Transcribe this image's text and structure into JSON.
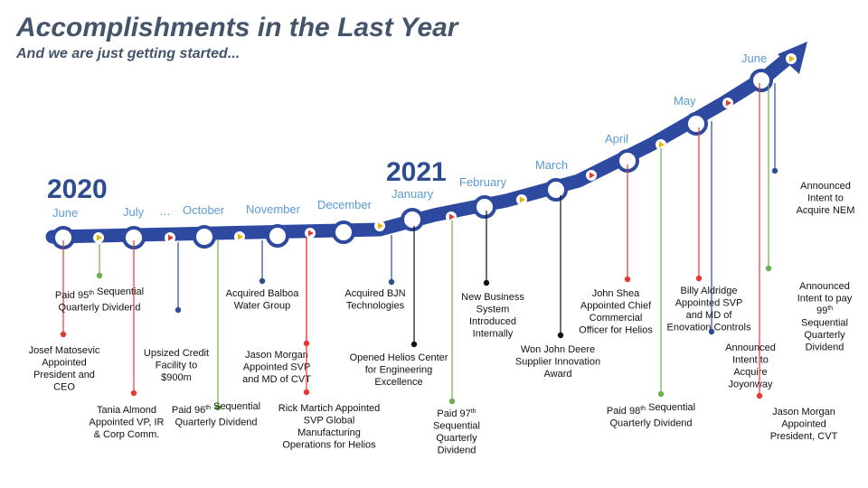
{
  "title": "Accomplishments in the Last Year",
  "subtitle": "And we are just getting started...",
  "colors": {
    "band": "#2e4aa0",
    "red": "#e53935",
    "green": "#6ab04c",
    "navy": "#2e4d8f",
    "black": "#111111",
    "month": "#5b9bd5",
    "title": "#44546a"
  },
  "years": [
    "2020",
    "2021"
  ],
  "months": [
    "June",
    "July",
    "…",
    "October",
    "November",
    "December",
    "January",
    "February",
    "March",
    "April",
    "May",
    "June"
  ],
  "annotations": [
    {
      "id": "josef",
      "lines": [
        "Josef Matosevic",
        "Appointed",
        "President and",
        "CEO"
      ],
      "color": "red"
    },
    {
      "id": "paid95",
      "lines": [
        "Paid 95|th| Sequential",
        "Quarterly Dividend"
      ],
      "color": "green"
    },
    {
      "id": "tania",
      "lines": [
        "Tania Almond",
        "Appointed VP, IR",
        "& Corp Comm."
      ],
      "color": "red"
    },
    {
      "id": "upsized",
      "lines": [
        "Upsized Credit",
        "Facility to",
        "$900m"
      ],
      "color": "navy"
    },
    {
      "id": "paid96",
      "lines": [
        "Paid 96|th| Sequential",
        "Quarterly Dividend"
      ],
      "color": "green"
    },
    {
      "id": "balboa",
      "lines": [
        "Acquired Balboa",
        "Water Group"
      ],
      "color": "navy"
    },
    {
      "id": "jason1",
      "lines": [
        "Jason Morgan",
        "Appointed SVP",
        "and MD of CVT"
      ],
      "color": "red"
    },
    {
      "id": "rick",
      "lines": [
        "Rick Martich Appointed",
        "SVP Global",
        "Manufacturing",
        "Operations for Helios"
      ],
      "color": "red"
    },
    {
      "id": "bjn",
      "lines": [
        "Acquired BJN",
        "Technologies"
      ],
      "color": "navy"
    },
    {
      "id": "helios",
      "lines": [
        "Opened Helios Center",
        "for Engineering",
        "Excellence"
      ],
      "color": "black"
    },
    {
      "id": "paid97",
      "lines": [
        "Paid 97|th|",
        "Sequential",
        "Quarterly",
        "Dividend"
      ],
      "color": "green"
    },
    {
      "id": "newbiz",
      "lines": [
        "New Business",
        "System",
        "Introduced",
        "Internally"
      ],
      "color": "black"
    },
    {
      "id": "deere",
      "lines": [
        "Won John Deere",
        "Supplier Innovation",
        "Award"
      ],
      "color": "black"
    },
    {
      "id": "shea",
      "lines": [
        "John Shea",
        "Appointed Chief",
        "Commercial",
        "Officer for Helios"
      ],
      "color": "red"
    },
    {
      "id": "paid98",
      "lines": [
        "Paid 98|th| Sequential",
        "Quarterly Dividend"
      ],
      "color": "green"
    },
    {
      "id": "billy",
      "lines": [
        "Billy Aldridge",
        "Appointed SVP",
        "and MD of",
        "Enovation Controls"
      ],
      "color": "red"
    },
    {
      "id": "joyon",
      "lines": [
        "Announced",
        "Intent to",
        "Acquire",
        "Joyonway"
      ],
      "color": "navy"
    },
    {
      "id": "jason2",
      "lines": [
        "Jason Morgan",
        "Appointed",
        "President, CVT"
      ],
      "color": "red"
    },
    {
      "id": "nem",
      "lines": [
        "Announced",
        "Intent to",
        "Acquire NEM"
      ],
      "color": "navy"
    },
    {
      "id": "paid99",
      "lines": [
        "Announced",
        "Intent to pay",
        "99|th|",
        "Sequential",
        "Quarterly",
        "Dividend"
      ],
      "color": "green"
    }
  ]
}
